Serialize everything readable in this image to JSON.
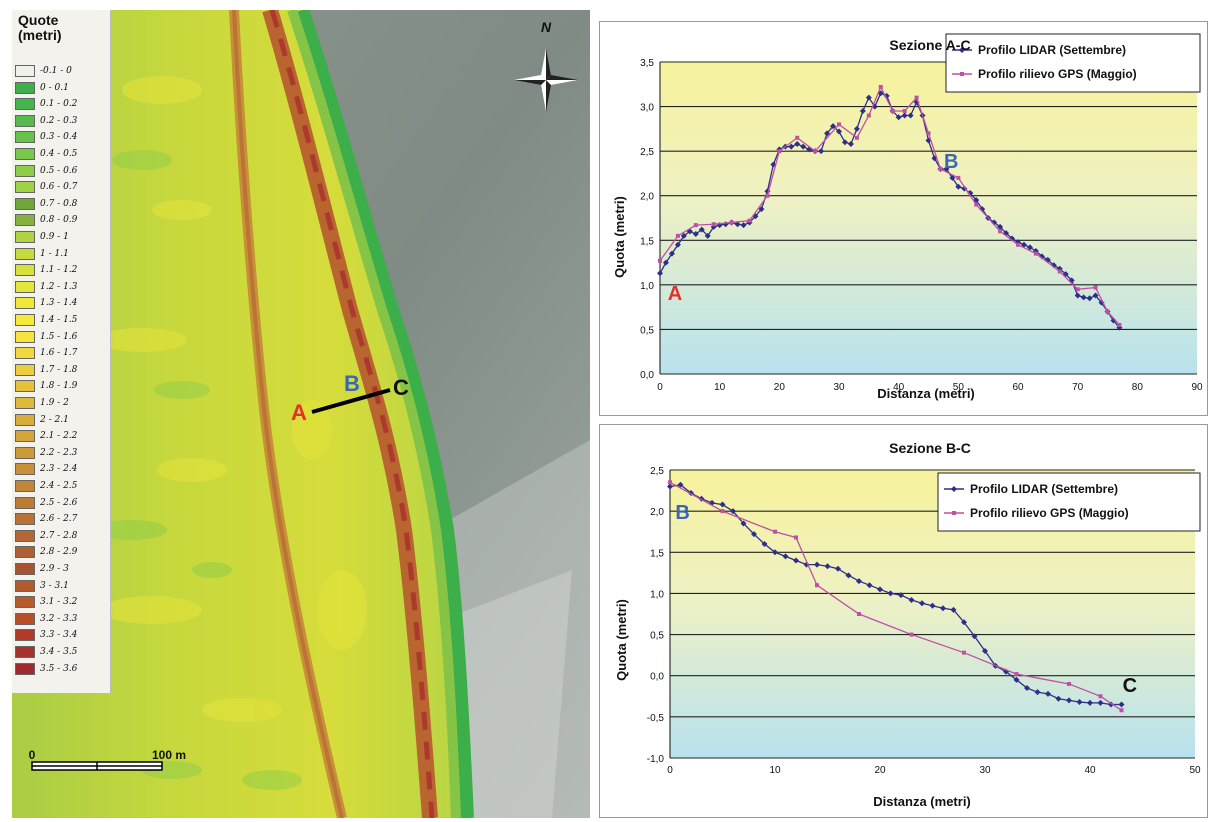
{
  "map": {
    "legend_title_line1": "Quote",
    "legend_title_line2": "(metri)",
    "legend": [
      {
        "label": "-0.1 - 0",
        "color": "#f1f1ec"
      },
      {
        "label": "0 - 0.1",
        "color": "#3cae4a"
      },
      {
        "label": "0.1 - 0.2",
        "color": "#45b44c"
      },
      {
        "label": "0.2 - 0.3",
        "color": "#55bb4b"
      },
      {
        "label": "0.3 - 0.4",
        "color": "#67c24a"
      },
      {
        "label": "0.4 - 0.5",
        "color": "#7ac84a"
      },
      {
        "label": "0.5 - 0.6",
        "color": "#8dcd49"
      },
      {
        "label": "0.6 - 0.7",
        "color": "#9fd248"
      },
      {
        "label": "0.7 - 0.8",
        "color": "#6fa63a"
      },
      {
        "label": "0.8 - 0.9",
        "color": "#86b33d"
      },
      {
        "label": "0.9 - 1",
        "color": "#b0d43f"
      },
      {
        "label": "1 - 1.1",
        "color": "#c5dc3c"
      },
      {
        "label": "1.1 - 1.2",
        "color": "#d6e23a"
      },
      {
        "label": "1.2 - 1.3",
        "color": "#e3e638"
      },
      {
        "label": "1.3 - 1.4",
        "color": "#eee938"
      },
      {
        "label": "1.4 - 1.5",
        "color": "#f5ea3a"
      },
      {
        "label": "1.5 - 1.6",
        "color": "#f6e33c"
      },
      {
        "label": "1.6 - 1.7",
        "color": "#f2d83d"
      },
      {
        "label": "1.7 - 1.8",
        "color": "#eccd3c"
      },
      {
        "label": "1.8 - 1.9",
        "color": "#e6c23b"
      },
      {
        "label": "1.9 - 2",
        "color": "#e0b83a"
      },
      {
        "label": "2 - 2.1",
        "color": "#d9ae39"
      },
      {
        "label": "2.1 - 2.2",
        "color": "#d3a439"
      },
      {
        "label": "2.2 - 2.3",
        "color": "#cd9a38"
      },
      {
        "label": "2.3 - 2.4",
        "color": "#c89037"
      },
      {
        "label": "2.4 - 2.5",
        "color": "#c28637"
      },
      {
        "label": "2.5 - 2.6",
        "color": "#bd7c36"
      },
      {
        "label": "2.6 - 2.7",
        "color": "#b87235"
      },
      {
        "label": "2.7 - 2.8",
        "color": "#b36834"
      },
      {
        "label": "2.8 - 2.9",
        "color": "#ad5e33"
      },
      {
        "label": "2.9 - 3",
        "color": "#a85432"
      },
      {
        "label": "3 - 3.1",
        "color": "#b35a2e"
      },
      {
        "label": "3.1 - 3.2",
        "color": "#ba5a2a"
      },
      {
        "label": "3.2 - 3.3",
        "color": "#b84e28"
      },
      {
        "label": "3.3 - 3.4",
        "color": "#b13a2a"
      },
      {
        "label": "3.4 - 3.5",
        "color": "#a8302d"
      },
      {
        "label": "3.5 - 3.6",
        "color": "#9e2a30"
      }
    ],
    "north_label": "N",
    "scale_start": "0",
    "scale_end": "100 m",
    "point_a": "A",
    "point_b": "B",
    "point_c": "C",
    "point_a_color": "#e0322a",
    "point_b_color": "#3a67b4",
    "point_c_color": "#111111"
  },
  "chart_data": [
    {
      "type": "line",
      "title": "Sezione A-C",
      "xlabel": "Distanza (metri)",
      "ylabel": "Quota (metri)",
      "xlim": [
        0,
        90
      ],
      "ylim": [
        0,
        3.5
      ],
      "x_ticks": [
        "0",
        "10",
        "20",
        "30",
        "40",
        "50",
        "60",
        "70",
        "80",
        "90"
      ],
      "y_ticks": [
        "0,0",
        "0,5",
        "1,0",
        "1,5",
        "2,0",
        "2,5",
        "3,0",
        "3,5"
      ],
      "grid": true,
      "legend_position": "top-right",
      "annotations": [
        {
          "text": "A",
          "x": 2.5,
          "y": 0.92,
          "color": "#e0322a"
        },
        {
          "text": "B",
          "x": 48.8,
          "y": 2.4,
          "color": "#3a67b4"
        }
      ],
      "series": [
        {
          "name": "Profilo LIDAR (Settembre)",
          "color": "#2e2f8a",
          "marker": "diamond",
          "x": [
            0,
            1,
            2,
            3,
            4,
            5,
            6,
            7,
            8,
            9,
            10,
            11,
            12,
            13,
            14,
            15,
            16,
            17,
            18,
            19,
            20,
            21,
            22,
            23,
            24,
            25,
            26,
            27,
            28,
            29,
            30,
            31,
            32,
            33,
            34,
            35,
            36,
            37,
            38,
            39,
            40,
            41,
            42,
            43,
            44,
            45,
            46,
            47,
            48,
            49,
            50,
            51,
            52,
            53,
            54,
            55,
            56,
            57,
            58,
            59,
            60,
            61,
            62,
            63,
            64,
            65,
            66,
            67,
            68,
            69,
            70,
            71,
            72,
            73,
            74,
            75,
            76,
            77
          ],
          "y": [
            1.13,
            1.25,
            1.35,
            1.45,
            1.55,
            1.6,
            1.57,
            1.62,
            1.55,
            1.65,
            1.67,
            1.68,
            1.7,
            1.68,
            1.67,
            1.7,
            1.77,
            1.85,
            2.05,
            2.35,
            2.52,
            2.55,
            2.55,
            2.58,
            2.55,
            2.52,
            2.5,
            2.5,
            2.7,
            2.78,
            2.72,
            2.6,
            2.58,
            2.75,
            2.95,
            3.1,
            3.0,
            3.15,
            3.12,
            2.95,
            2.88,
            2.9,
            2.9,
            3.05,
            2.9,
            2.62,
            2.42,
            2.3,
            2.3,
            2.2,
            2.1,
            2.08,
            2.03,
            1.95,
            1.85,
            1.75,
            1.7,
            1.65,
            1.58,
            1.52,
            1.48,
            1.45,
            1.42,
            1.38,
            1.32,
            1.28,
            1.22,
            1.18,
            1.12,
            1.05,
            0.88,
            0.86,
            0.85,
            0.88,
            0.8,
            0.7,
            0.6,
            0.52
          ]
        },
        {
          "name": "Profilo rilievo GPS (Maggio)",
          "color": "#c04fa6",
          "marker": "square",
          "x": [
            0,
            3,
            6,
            9,
            12,
            15,
            18,
            20,
            23,
            26,
            30,
            33,
            35,
            37,
            39,
            41,
            43,
            45,
            47,
            50,
            53,
            57,
            60,
            63,
            67,
            70,
            73,
            75,
            77
          ],
          "y": [
            1.27,
            1.55,
            1.67,
            1.68,
            1.7,
            1.72,
            2.0,
            2.5,
            2.65,
            2.5,
            2.8,
            2.65,
            2.9,
            3.22,
            2.95,
            2.95,
            3.1,
            2.7,
            2.3,
            2.2,
            1.9,
            1.6,
            1.45,
            1.35,
            1.15,
            0.95,
            0.97,
            0.7,
            0.55
          ]
        }
      ]
    },
    {
      "type": "line",
      "title": "Sezione B-C",
      "xlabel": "Distanza (metri)",
      "ylabel": "Quota (metri)",
      "xlim": [
        0,
        50
      ],
      "ylim": [
        -1,
        2.5
      ],
      "x_ticks": [
        "0",
        "10",
        "20",
        "30",
        "40",
        "50"
      ],
      "y_ticks": [
        "-1,0",
        "-0,5",
        "0,0",
        "0,5",
        "1,0",
        "1,5",
        "2,0",
        "2,5"
      ],
      "grid": true,
      "legend_position": "top-right",
      "annotations": [
        {
          "text": "B",
          "x": 1.2,
          "y": 2.0,
          "color": "#3a67b4"
        },
        {
          "text": "C",
          "x": 43.8,
          "y": -0.1,
          "color": "#111111"
        }
      ],
      "series": [
        {
          "name": "Profilo LIDAR (Settembre)",
          "color": "#2e2f8a",
          "marker": "diamond",
          "x": [
            0,
            1,
            2,
            3,
            4,
            5,
            6,
            7,
            8,
            9,
            10,
            11,
            12,
            13,
            14,
            15,
            16,
            17,
            18,
            19,
            20,
            21,
            22,
            23,
            24,
            25,
            26,
            27,
            28,
            29,
            30,
            31,
            32,
            33,
            34,
            35,
            36,
            37,
            38,
            39,
            40,
            41,
            42,
            43
          ],
          "y": [
            2.3,
            2.32,
            2.22,
            2.15,
            2.1,
            2.08,
            2.0,
            1.85,
            1.72,
            1.6,
            1.5,
            1.45,
            1.4,
            1.35,
            1.35,
            1.33,
            1.3,
            1.22,
            1.15,
            1.1,
            1.05,
            1.0,
            0.98,
            0.92,
            0.88,
            0.85,
            0.82,
            0.8,
            0.65,
            0.48,
            0.3,
            0.12,
            0.05,
            -0.05,
            -0.15,
            -0.2,
            -0.22,
            -0.28,
            -0.3,
            -0.32,
            -0.33,
            -0.33,
            -0.35,
            -0.35
          ]
        },
        {
          "name": "Profilo rilievo GPS (Maggio)",
          "color": "#c04fa6",
          "marker": "square",
          "x": [
            0,
            5,
            10,
            12,
            14,
            18,
            23,
            28,
            33,
            38,
            41,
            43
          ],
          "y": [
            2.35,
            2.0,
            1.75,
            1.68,
            1.1,
            0.75,
            0.5,
            0.28,
            0.02,
            -0.1,
            -0.25,
            -0.42
          ]
        }
      ]
    }
  ]
}
